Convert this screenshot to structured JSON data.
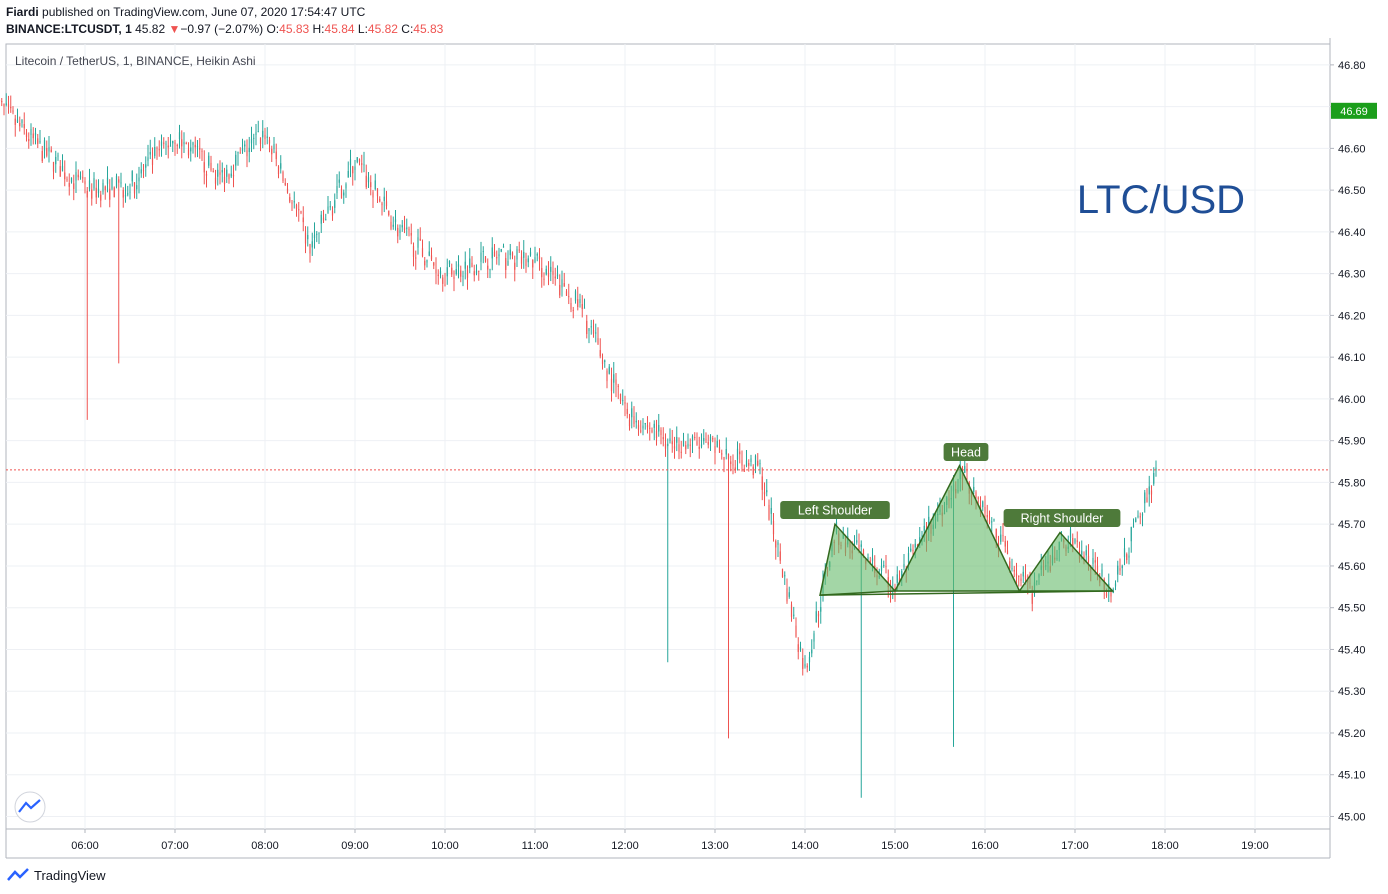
{
  "header": {
    "author": "Fiardi",
    "published_text": "published on TradingView.com, June 07, 2020 17:54:47 UTC",
    "symbol_interval": "BINANCE:LTCUSDT, 1",
    "last": "45.82",
    "change_arrow": "▼",
    "change": "−0.97 (−2.07%)",
    "o_label": "O:",
    "o": "45.83",
    "h_label": "H:",
    "h": "45.84",
    "l_label": "L:",
    "l": "45.82",
    "c_label": "C:",
    "c": "45.83"
  },
  "footer": {
    "brand": "TradingView"
  },
  "chart_data": {
    "type": "candlestick",
    "legend": "Litecoin / TetherUS, 1, BINANCE, Heikin Ashi",
    "title": "LTC/USD",
    "x_ticks": [
      "06:00",
      "07:00",
      "08:00",
      "09:00",
      "10:00",
      "11:00",
      "12:00",
      "13:00",
      "14:00",
      "15:00",
      "16:00",
      "17:00",
      "18:00",
      "19:00"
    ],
    "y_ticks": [
      "46.80",
      "46.70",
      "46.60",
      "46.50",
      "46.40",
      "46.30",
      "46.20",
      "46.10",
      "46.00",
      "45.90",
      "45.80",
      "45.70",
      "45.60",
      "45.50",
      "45.40",
      "45.30",
      "45.20",
      "45.10",
      "45.00"
    ],
    "ylim": [
      44.97,
      46.85
    ],
    "current_price": 46.69,
    "current_price_label": "46.69",
    "last_price_line": 45.83,
    "grid": true,
    "colors": {
      "up": "#26a69a",
      "down": "#ef5350",
      "pattern_fill": "#66bb6a",
      "pattern_stroke": "#33691e",
      "label_bg": "#4e7a3a",
      "title": "#1f4e96",
      "price_badge": "#1b9e1b"
    },
    "price_path_hourly": [
      {
        "time": "05:00",
        "price": 46.71
      },
      {
        "time": "05:30",
        "price": 46.6
      },
      {
        "time": "06:00",
        "price": 46.5
      },
      {
        "time": "06:30",
        "price": 46.51
      },
      {
        "time": "07:00",
        "price": 46.63
      },
      {
        "time": "07:30",
        "price": 46.53
      },
      {
        "time": "08:00",
        "price": 46.64
      },
      {
        "time": "08:30",
        "price": 46.36
      },
      {
        "time": "09:00",
        "price": 46.57
      },
      {
        "time": "09:30",
        "price": 46.4
      },
      {
        "time": "10:00",
        "price": 46.3
      },
      {
        "time": "10:30",
        "price": 46.34
      },
      {
        "time": "11:00",
        "price": 46.33
      },
      {
        "time": "11:30",
        "price": 46.22
      },
      {
        "time": "12:00",
        "price": 45.97
      },
      {
        "time": "12:30",
        "price": 45.9
      },
      {
        "time": "13:00",
        "price": 45.88
      },
      {
        "time": "13:30",
        "price": 45.83
      },
      {
        "time": "14:00",
        "price": 45.35
      },
      {
        "time": "14:20",
        "price": 45.68
      },
      {
        "time": "15:00",
        "price": 45.55
      },
      {
        "time": "15:45",
        "price": 45.83
      },
      {
        "time": "16:30",
        "price": 45.53
      },
      {
        "time": "16:55",
        "price": 45.67
      },
      {
        "time": "17:25",
        "price": 45.54
      },
      {
        "time": "17:55",
        "price": 45.84
      }
    ],
    "pattern": {
      "name": "Head and Shoulders",
      "labels": [
        "Left Shoulder",
        "Head",
        "Right Shoulder"
      ],
      "points": [
        {
          "time": "14:10",
          "price": 45.53
        },
        {
          "time": "14:20",
          "price": 45.7
        },
        {
          "time": "15:00",
          "price": 45.54
        },
        {
          "time": "15:43",
          "price": 45.84
        },
        {
          "time": "16:23",
          "price": 45.54
        },
        {
          "time": "16:50",
          "price": 45.68
        },
        {
          "time": "17:25",
          "price": 45.54
        }
      ]
    }
  }
}
